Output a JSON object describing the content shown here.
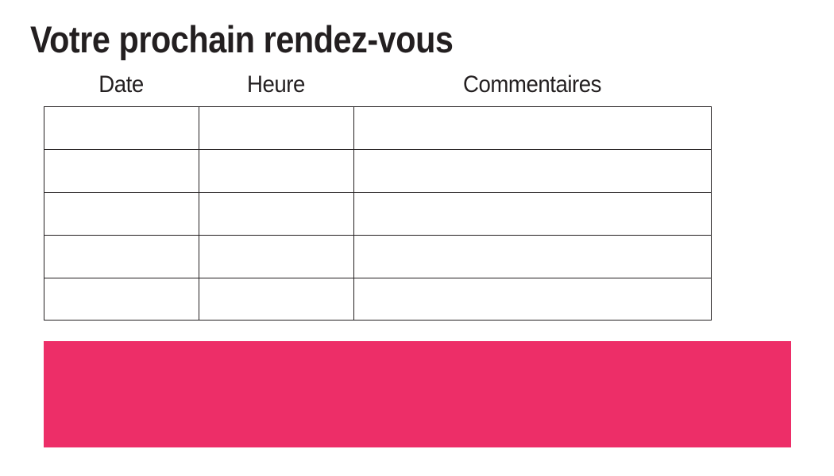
{
  "page": {
    "title": "Votre prochain rendez-vous",
    "background_color": "#ffffff",
    "text_color": "#231f20"
  },
  "appointments_table": {
    "columns": [
      "Date",
      "Heure",
      "Commentaires"
    ],
    "rows": [
      [
        "",
        "",
        ""
      ],
      [
        "",
        "",
        ""
      ],
      [
        "",
        "",
        ""
      ],
      [
        "",
        "",
        ""
      ],
      [
        "",
        "",
        ""
      ]
    ],
    "border_color": "#231f20"
  },
  "banner": {
    "text": "",
    "color": "#ED2E68"
  }
}
